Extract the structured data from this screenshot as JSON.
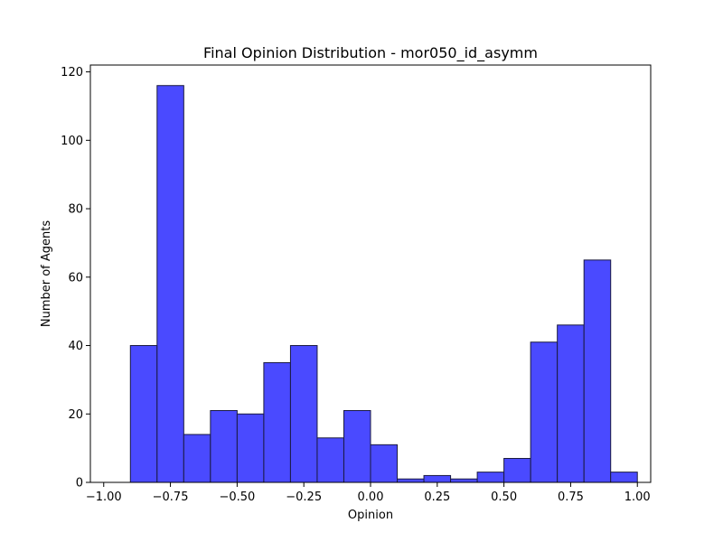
{
  "chart_data": {
    "type": "bar",
    "subtype": "histogram",
    "title": "Final Opinion Distribution - mor050_id_asymm",
    "xlabel": "Opinion",
    "ylabel": "Number of Agents",
    "xlim": [
      -1.05,
      1.05
    ],
    "ylim": [
      0,
      122
    ],
    "bin_edges": [
      -1.0,
      -0.9,
      -0.8,
      -0.7,
      -0.6,
      -0.5,
      -0.4,
      -0.3,
      -0.2,
      -0.1,
      0.0,
      0.1,
      0.2,
      0.3,
      0.4,
      0.5,
      0.6,
      0.7,
      0.8,
      0.9,
      1.0
    ],
    "values": [
      0,
      40,
      116,
      14,
      21,
      20,
      35,
      40,
      13,
      21,
      11,
      1,
      2,
      1,
      3,
      7,
      41,
      46,
      65,
      3
    ],
    "xticks": [
      -1.0,
      -0.75,
      -0.5,
      -0.25,
      0.0,
      0.25,
      0.5,
      0.75,
      1.0
    ],
    "xtick_labels": [
      "−1.00",
      "−0.75",
      "−0.50",
      "−0.25",
      "0.00",
      "0.25",
      "0.50",
      "0.75",
      "1.00"
    ],
    "yticks": [
      0,
      20,
      40,
      60,
      80,
      100,
      120
    ],
    "ytick_labels": [
      "0",
      "20",
      "40",
      "60",
      "80",
      "100",
      "120"
    ],
    "grid": false,
    "bar_color": "#4a4aff",
    "edge_color": "#1a1a40"
  }
}
